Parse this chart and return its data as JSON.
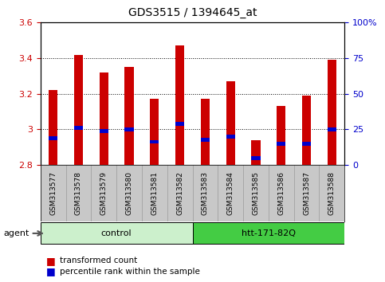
{
  "title": "GDS3515 / 1394645_at",
  "samples": [
    "GSM313577",
    "GSM313578",
    "GSM313579",
    "GSM313580",
    "GSM313581",
    "GSM313582",
    "GSM313583",
    "GSM313584",
    "GSM313585",
    "GSM313586",
    "GSM313587",
    "GSM313588"
  ],
  "transformed_count": [
    3.22,
    3.42,
    3.32,
    3.35,
    3.17,
    3.47,
    3.17,
    3.27,
    2.94,
    3.13,
    3.19,
    3.39
  ],
  "percentile_rank": [
    2.95,
    3.01,
    2.99,
    3.0,
    2.93,
    3.03,
    2.94,
    2.96,
    2.84,
    2.92,
    2.92,
    3.0
  ],
  "ylim_left": [
    2.8,
    3.6
  ],
  "yticks_left": [
    2.8,
    3.0,
    3.2,
    3.4,
    3.6
  ],
  "ytick_labels_left": [
    "2.8",
    "3",
    "3.2",
    "3.4",
    "3.6"
  ],
  "yticks_right": [
    0,
    25,
    50,
    75,
    100
  ],
  "ytick_labels_right": [
    "0",
    "25",
    "50",
    "75",
    "100%"
  ],
  "groups": [
    {
      "label": "control",
      "start": 0,
      "end": 6,
      "color": "#ccf0cc"
    },
    {
      "label": "htt-171-82Q",
      "start": 6,
      "end": 12,
      "color": "#44cc44"
    }
  ],
  "agent_label": "agent",
  "bar_color": "#cc0000",
  "percentile_color": "#0000cc",
  "bar_width": 0.35,
  "background_color": "#ffffff",
  "grid_color": "#000000",
  "tick_color_left": "#cc0000",
  "tick_color_right": "#0000cc",
  "label_area_color": "#c8c8c8",
  "dotted_levels": [
    3.0,
    3.2,
    3.4
  ]
}
